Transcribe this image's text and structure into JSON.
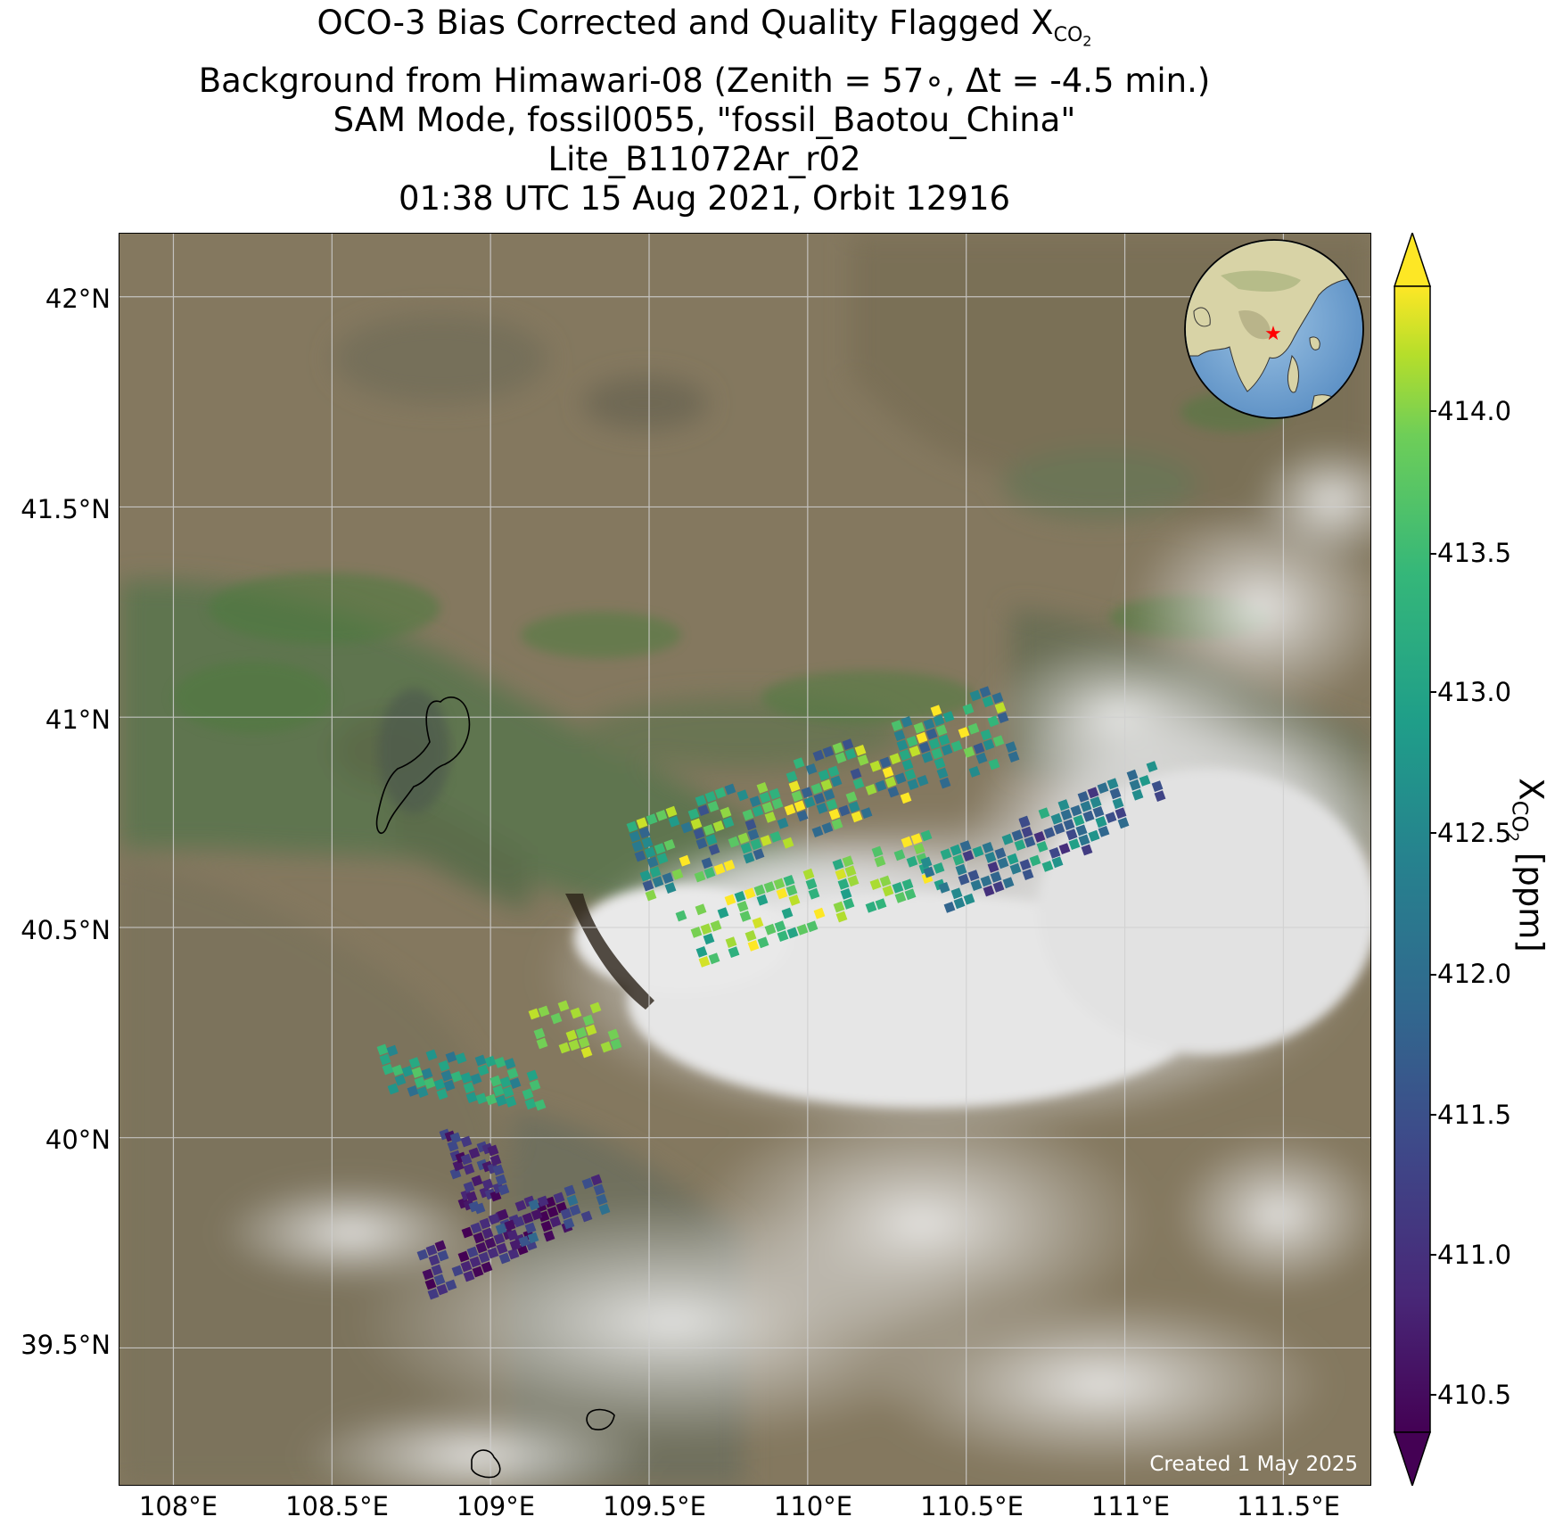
{
  "title": {
    "line1_main": "OCO-3 Bias Corrected and Quality Flagged X",
    "line1_sub": "CO",
    "line1_subsub": "2",
    "line2": "Background from Himawari-08 (Zenith = 57∘, Δt = -4.5 min.)",
    "line3": "SAM Mode, fossil0055, \"fossil_Baotou_China\"",
    "line4": "Lite_B11072Ar_r02",
    "line5": "01:38 UTC 15 Aug 2021, Orbit 12916"
  },
  "map": {
    "lat_ticks": [
      "42°N",
      "41.5°N",
      "41°N",
      "40.5°N",
      "40°N",
      "39.5°N"
    ],
    "lon_ticks": [
      "108°E",
      "108.5°E",
      "109°E",
      "109.5°E",
      "110°E",
      "110.5°E",
      "111°E",
      "111.5°E"
    ],
    "lat_values": [
      42.0,
      41.5,
      41.0,
      40.5,
      40.0,
      39.5
    ],
    "lon_values": [
      108.0,
      108.5,
      109.0,
      109.5,
      110.0,
      110.5,
      111.0,
      111.5
    ],
    "extent": {
      "lon": [
        107.83,
        111.78
      ],
      "lat": [
        39.17,
        42.15
      ]
    },
    "target_location": {
      "lon": 109.84,
      "lat": 40.65
    },
    "created_note": "Created 1 May 2025",
    "inset": "globe-asia",
    "marker_color": "#ff0000"
  },
  "colorbar": {
    "ticks": [
      "414.0",
      "413.5",
      "413.0",
      "412.5",
      "412.0",
      "411.5",
      "411.0",
      "410.5"
    ],
    "tick_values": [
      414.0,
      413.5,
      413.0,
      412.5,
      412.0,
      411.5,
      411.0,
      410.5
    ],
    "range": [
      410.25,
      414.4
    ],
    "colormap": "viridis",
    "extend": "both",
    "label_main": "X",
    "label_sub": "CO",
    "label_subsub": "2",
    "label_unit": " [ppm]"
  }
}
